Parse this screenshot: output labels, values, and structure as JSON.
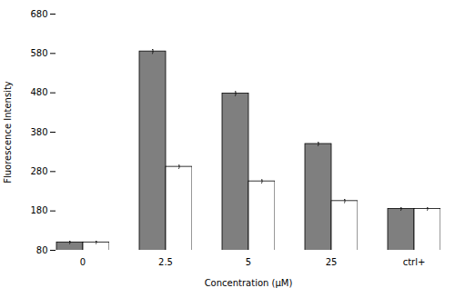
{
  "chart_data": {
    "type": "bar",
    "categories": [
      "0",
      "2.5",
      "5",
      "25",
      "ctrl+"
    ],
    "series": [
      {
        "color": "#7f7f7f",
        "values": [
          100,
          585,
          478,
          350,
          185
        ],
        "errors": [
          3,
          5,
          5,
          4,
          3
        ]
      },
      {
        "color": "#ffffff",
        "values": [
          100,
          292,
          255,
          205,
          185
        ],
        "errors": [
          3,
          4,
          4,
          4,
          3
        ]
      }
    ],
    "xlabel": "Concentration (μM)",
    "ylabel": "Fluorescence Intensity",
    "ylim": [
      80,
      680
    ],
    "yticks": [
      80,
      180,
      280,
      380,
      480,
      580,
      680
    ],
    "grid": false
  }
}
